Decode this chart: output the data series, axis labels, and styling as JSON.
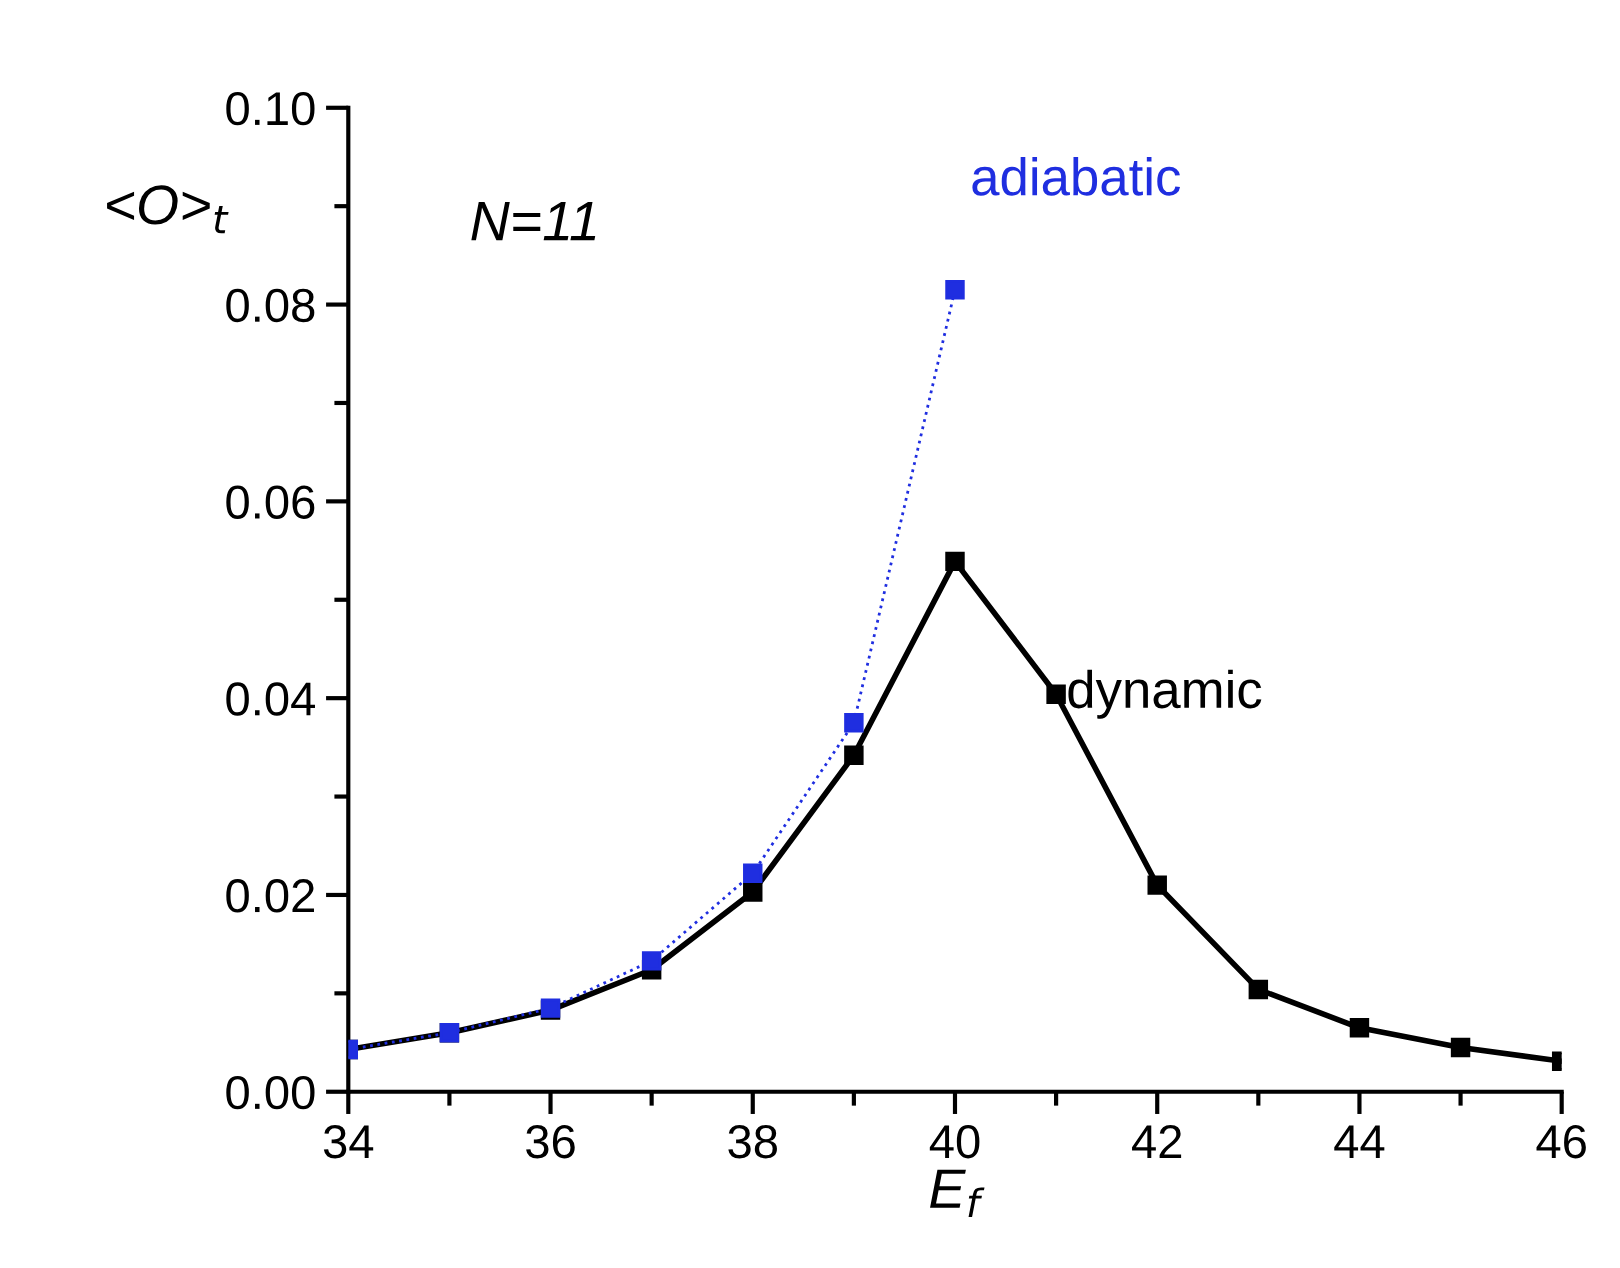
{
  "chart_data": {
    "type": "line",
    "xlabel": "E$_{f}$",
    "ylabel": "<O>$_{t}$",
    "annotations": [
      "N=11"
    ],
    "xlim": [
      34,
      46
    ],
    "xticks": [
      34,
      36,
      38,
      40,
      42,
      44,
      46
    ],
    "ylim": [
      0,
      0.1
    ],
    "yticks": [
      {
        "value": 0,
        "label": "0.00"
      },
      {
        "value": 0.02,
        "label": "0.02"
      },
      {
        "value": 0.04,
        "label": "0.04"
      },
      {
        "value": 0.06,
        "label": "0.06"
      },
      {
        "value": 0.08,
        "label": "0.08"
      },
      {
        "value": 0.1,
        "label": "0.10"
      }
    ],
    "grid": false,
    "legend": false,
    "marker": "square",
    "series": [
      {
        "name": "dynamic",
        "color": "#000000",
        "line_style": "solid",
        "x": [
          34,
          35,
          36,
          37,
          38,
          39,
          40,
          41,
          42,
          43,
          44,
          45,
          46
        ],
        "values": [
          0.0043,
          0.006,
          0.0083,
          0.0124,
          0.0203,
          0.0342,
          0.0539,
          0.0404,
          0.021,
          0.0104,
          0.0065,
          0.0045,
          0.0031
        ]
      },
      {
        "name": "adiabatic",
        "color": "#1f2ee0",
        "line_style": "dotted",
        "x": [
          34,
          35,
          36,
          37,
          38,
          39,
          40
        ],
        "values": [
          0.0043,
          0.006,
          0.0085,
          0.0133,
          0.0222,
          0.0375,
          0.0815
        ]
      }
    ]
  }
}
